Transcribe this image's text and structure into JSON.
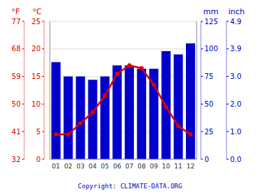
{
  "chart_data": {
    "type": "bar",
    "categories": [
      "01",
      "02",
      "03",
      "04",
      "05",
      "06",
      "07",
      "08",
      "09",
      "10",
      "11",
      "12"
    ],
    "series": [
      {
        "type": "bar",
        "color": "#0000cc",
        "values": [
          88,
          75,
          75,
          72,
          75,
          85,
          85,
          82,
          82,
          98,
          95,
          105
        ]
      },
      {
        "type": "line",
        "axis": "y2",
        "color": "#dd0000",
        "marker": "circle",
        "values": [
          4.5,
          4.5,
          6.5,
          8.5,
          11.5,
          15.5,
          17.0,
          16.5,
          13.5,
          9.5,
          6.0,
          4.5
        ]
      }
    ],
    "ylabel": "mm",
    "ylim": [
      0,
      125
    ],
    "yticks": [
      0,
      25,
      50,
      75,
      100,
      125
    ],
    "y_alt_label": "inch",
    "y_alt_ticks": [
      {
        "value": 0,
        "label": "0.0"
      },
      {
        "value": 25,
        "label": "1.0"
      },
      {
        "value": 50,
        "label": "2.0"
      },
      {
        "value": 75,
        "label": "3.0"
      },
      {
        "value": 100,
        "label": "3.9"
      },
      {
        "value": 125,
        "label": "4.9"
      }
    ],
    "y2label": "°C",
    "y2lim": [
      0,
      25
    ],
    "y2ticks": [
      0,
      5,
      10,
      15,
      20,
      25
    ],
    "y2_alt_label": "°F",
    "y2_alt_ticks": [
      {
        "value": 0,
        "label": "32"
      },
      {
        "value": 5,
        "label": "41"
      },
      {
        "value": 10,
        "label": "50"
      },
      {
        "value": 15,
        "label": "59"
      },
      {
        "value": 20,
        "label": "68"
      },
      {
        "value": 25,
        "label": "77"
      }
    ],
    "grid": true,
    "annotations": [
      "Copyright: CLIMATE-DATA.ORG"
    ]
  }
}
